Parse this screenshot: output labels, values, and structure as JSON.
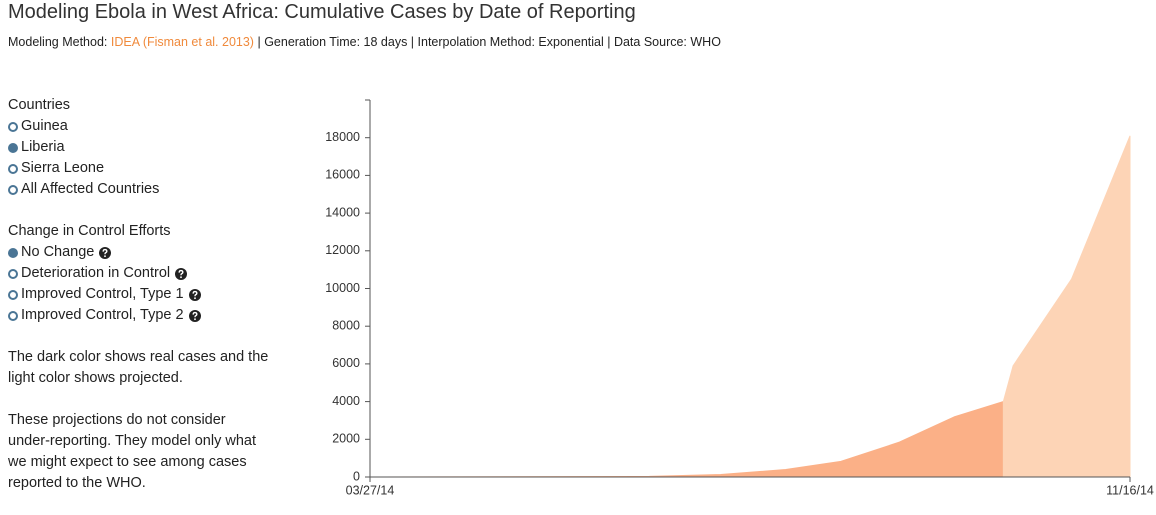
{
  "header": {
    "title": "Modeling Ebola in West Africa: Cumulative Cases by Date of Reporting",
    "method_label": "Modeling Method:",
    "method_link": "IDEA (Fisman et al. 2013)",
    "details": "| Generation Time: 18 days | Interpolation Method: Exponential | Data Source: WHO"
  },
  "controls": [
    {
      "title": "Countries",
      "options": [
        {
          "label": "Guinea",
          "selected": false
        },
        {
          "label": "Liberia",
          "selected": true
        },
        {
          "label": "Sierra Leone",
          "selected": false
        },
        {
          "label": "All Affected Countries",
          "selected": false
        }
      ]
    },
    {
      "title": "Change in Control Efforts",
      "options": [
        {
          "label": "No Change",
          "selected": true,
          "help": true
        },
        {
          "label": "Deterioration in Control",
          "selected": false,
          "help": true
        },
        {
          "label": "Improved Control, Type 1",
          "selected": false,
          "help": true
        },
        {
          "label": "Improved Control, Type 2",
          "selected": false,
          "help": true
        }
      ]
    }
  ],
  "notes": [
    "The dark color shows real cases and the light color shows projected.",
    "These projections do not consider under-reporting. They model only what we might expect to see among cases reported to the WHO."
  ],
  "chart_data": {
    "type": "area",
    "x": [
      "03/27/14",
      "06/21/14",
      "07/13/14",
      "08/02/14",
      "08/19/14",
      "09/06/14",
      "09/23/14",
      "10/08/14",
      "10/11/14",
      "10/29/14",
      "11/16/14"
    ],
    "series": [
      {
        "color": "#fbb087",
        "values": [
          0,
          30,
          130,
          400,
          830,
          1850,
          3200,
          4000,
          null,
          null,
          null
        ]
      },
      {
        "color": "#fdd4b6",
        "values": [
          null,
          null,
          null,
          null,
          null,
          null,
          null,
          4000,
          5900,
          10500,
          18100
        ]
      }
    ],
    "xlim": [
      "03/27/14",
      "11/16/14"
    ],
    "xticks": [
      "03/27/14",
      "11/16/14"
    ],
    "ylim": [
      0,
      20000
    ],
    "yticks": [
      0,
      2000,
      4000,
      6000,
      8000,
      10000,
      12000,
      14000,
      16000,
      18000
    ]
  }
}
